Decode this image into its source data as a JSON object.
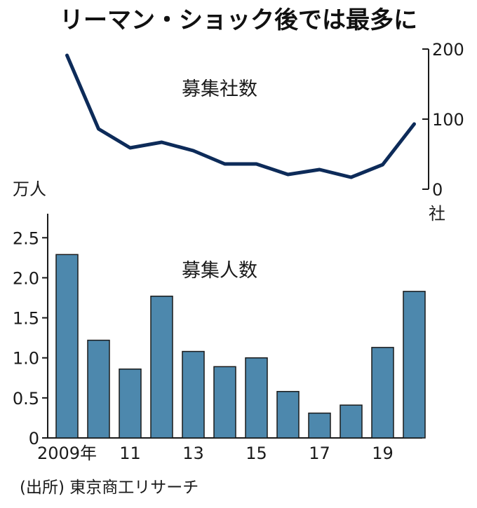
{
  "title": "リーマン・ショック後では最多に",
  "source": "(出所) 東京商工リサーチ",
  "chart_data": [
    {
      "type": "line",
      "series_label": "募集社数",
      "unit": "社",
      "x": [
        2009,
        2010,
        2011,
        2012,
        2013,
        2014,
        2015,
        2016,
        2017,
        2018,
        2019,
        2020
      ],
      "values": [
        191,
        86,
        59,
        67,
        55,
        36,
        36,
        21,
        28,
        17,
        35,
        93
      ],
      "ylim": [
        0,
        200
      ],
      "yticks": [
        "0",
        "100",
        "200"
      ],
      "axis_side": "right",
      "color": "#0d2b59"
    },
    {
      "type": "bar",
      "series_label": "募集人数",
      "unit": "万人",
      "x": [
        2009,
        2010,
        2011,
        2012,
        2013,
        2014,
        2015,
        2016,
        2017,
        2018,
        2019,
        2020
      ],
      "values": [
        2.29,
        1.22,
        0.86,
        1.77,
        1.08,
        0.89,
        1.0,
        0.58,
        0.31,
        0.41,
        1.13,
        1.83
      ],
      "ylim": [
        0,
        2.8
      ],
      "yticks": [
        "0",
        "0.5",
        "1.0",
        "1.5",
        "2.0",
        "2.5"
      ],
      "xticks": [
        {
          "year": 2009,
          "label": "2009年"
        },
        {
          "year": 2011,
          "label": "11"
        },
        {
          "year": 2013,
          "label": "13"
        },
        {
          "year": 2015,
          "label": "15"
        },
        {
          "year": 2017,
          "label": "17"
        },
        {
          "year": 2019,
          "label": "19"
        }
      ],
      "color": "#4d88ad",
      "edge_color": "#1a1a1a"
    }
  ]
}
